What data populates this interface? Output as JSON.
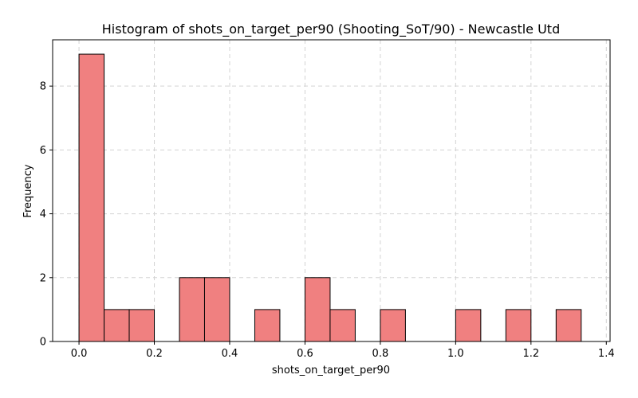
{
  "chart_data": {
    "type": "bar",
    "title": "Histogram of shots_on_target_per90 (Shooting_SoT/90) - Newcastle Utd",
    "xlabel": "shots_on_target_per90",
    "ylabel": "Frequency",
    "xlim": [
      -0.07,
      1.41
    ],
    "ylim": [
      0,
      9.45
    ],
    "grid": true,
    "bin_edges": [
      0.0,
      0.0667,
      0.1333,
      0.2,
      0.2667,
      0.3333,
      0.4,
      0.4667,
      0.5333,
      0.6,
      0.6667,
      0.7333,
      0.8,
      0.8667,
      0.9333,
      1.0,
      1.0667,
      1.1333,
      1.2,
      1.2667,
      1.3333
    ],
    "values": [
      9,
      1,
      1,
      0,
      2,
      2,
      0,
      1,
      0,
      2,
      1,
      0,
      1,
      0,
      0,
      1,
      0,
      1,
      0,
      1
    ],
    "xticks": [
      0.0,
      0.2,
      0.4,
      0.6,
      0.8,
      1.0,
      1.2,
      1.4
    ],
    "xtick_labels": [
      "0.0",
      "0.2",
      "0.4",
      "0.6",
      "0.8",
      "1.0",
      "1.2",
      "1.4"
    ],
    "yticks": [
      0,
      2,
      4,
      6,
      8
    ],
    "ytick_labels": [
      "0",
      "2",
      "4",
      "6",
      "8"
    ],
    "colors": {
      "bar_fill": "#f08080",
      "bar_edge": "#000000",
      "grid": "#d3d3d3"
    }
  }
}
